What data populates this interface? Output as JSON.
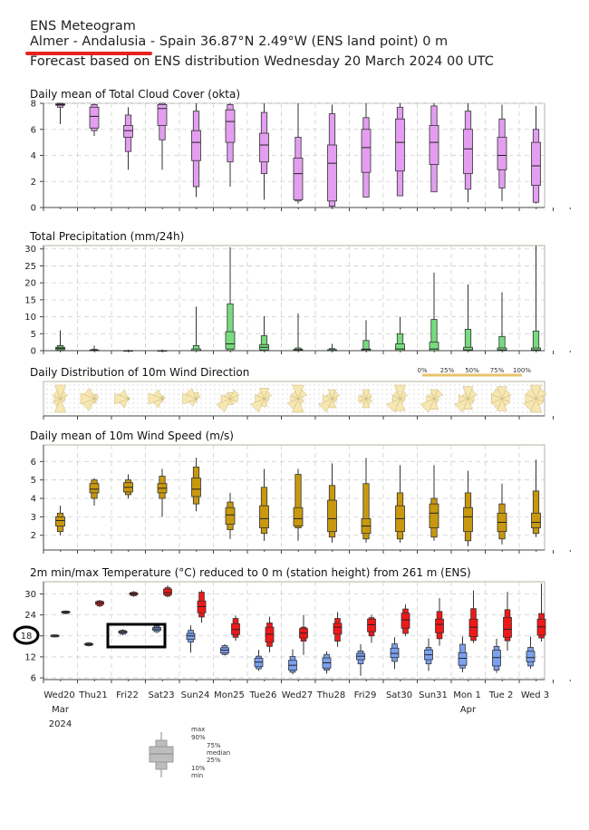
{
  "header": {
    "title": "ENS Meteogram",
    "location": "Almer - Andalusia - Spain 36.87°N 2.49°W (ENS land point) 0 m",
    "forecast": "Forecast based on ENS distribution Wednesday 20 March 2024 00 UTC"
  },
  "colors": {
    "cloud": "#e39ef0",
    "precip": "#77db7f",
    "wind_dir": "#f7e7b0",
    "wind_speed": "#c8980e",
    "temp_warm": "#f01818",
    "temp_cold": "#7ba0f0",
    "weekend": "#e00000",
    "annotation": "#000000",
    "red_underline": "#e8221f"
  },
  "xaxis": {
    "days": [
      "Wed20",
      "Thu21",
      "Fri22",
      "Sat23",
      "Sun24",
      "Mon25",
      "Tue26",
      "Wed27",
      "Thu28",
      "Fri29",
      "Sat30",
      "Sun31",
      "Mon 1",
      "Tue 2",
      "Wed 3"
    ],
    "weekend_days": [
      "Sun24",
      "Sun31"
    ],
    "month_labels": [
      "Mar",
      "Apr"
    ],
    "year_label": "2024"
  },
  "legend": {
    "max": "max",
    "p90": "90%",
    "p75": "75%",
    "median": "median",
    "p25": "25%",
    "p10": "10%",
    "min": "min"
  },
  "annotation": {
    "circled_value": "18"
  },
  "chart_data": [
    {
      "type": "box",
      "id": "cloud",
      "title": "Daily mean of Total Cloud Cover (okta)",
      "ylim": [
        0,
        8
      ],
      "yticks": [
        0,
        2,
        4,
        6,
        8
      ],
      "boxes": [
        {
          "min": 6.4,
          "p10": 7.7,
          "p25": 7.85,
          "med": 7.9,
          "p75": 7.95,
          "p90": 8,
          "max": 8
        },
        {
          "min": 5.5,
          "p10": 5.9,
          "p25": 6.1,
          "med": 7.0,
          "p75": 7.7,
          "p90": 7.9,
          "max": 8
        },
        {
          "min": 2.9,
          "p10": 4.3,
          "p25": 5.4,
          "med": 5.9,
          "p75": 6.3,
          "p90": 7.1,
          "max": 7.7
        },
        {
          "min": 2.9,
          "p10": 5.2,
          "p25": 6.3,
          "med": 7.6,
          "p75": 7.9,
          "p90": 8,
          "max": 8
        },
        {
          "min": 0.8,
          "p10": 1.6,
          "p25": 3.6,
          "med": 5.0,
          "p75": 5.9,
          "p90": 7.4,
          "max": 8
        },
        {
          "min": 1.6,
          "p10": 3.5,
          "p25": 5.0,
          "med": 6.6,
          "p75": 7.5,
          "p90": 7.9,
          "max": 8
        },
        {
          "min": 0.6,
          "p10": 2.6,
          "p25": 3.5,
          "med": 4.8,
          "p75": 5.7,
          "p90": 7.3,
          "max": 8
        },
        {
          "min": 0.3,
          "p10": 0.5,
          "p25": 0.6,
          "med": 2.6,
          "p75": 3.8,
          "p90": 5.4,
          "max": 8
        },
        {
          "min": 0.0,
          "p10": 0.1,
          "p25": 0.5,
          "med": 3.4,
          "p75": 4.8,
          "p90": 7.2,
          "max": 7.9
        },
        {
          "min": 0.8,
          "p10": 0.8,
          "p25": 2.7,
          "med": 4.6,
          "p75": 6.0,
          "p90": 6.9,
          "max": 8
        },
        {
          "min": 0.9,
          "p10": 0.9,
          "p25": 2.8,
          "med": 5.0,
          "p75": 6.8,
          "p90": 7.7,
          "max": 8
        },
        {
          "min": 1.2,
          "p10": 1.2,
          "p25": 3.3,
          "med": 5.0,
          "p75": 6.3,
          "p90": 7.8,
          "max": 8
        },
        {
          "min": 0.4,
          "p10": 1.4,
          "p25": 2.6,
          "med": 4.5,
          "p75": 6.0,
          "p90": 7.4,
          "max": 8
        },
        {
          "min": 0.5,
          "p10": 1.5,
          "p25": 2.9,
          "med": 4.0,
          "p75": 5.4,
          "p90": 6.8,
          "max": 7.9
        },
        {
          "min": 0.3,
          "p10": 0.4,
          "p25": 1.7,
          "med": 3.2,
          "p75": 5.0,
          "p90": 6.0,
          "max": 7.8
        }
      ]
    },
    {
      "type": "box",
      "id": "precip",
      "title": "Total Precipitation (mm/24h)",
      "ylim": [
        0,
        31
      ],
      "yticks": [
        0,
        5,
        10,
        15,
        20,
        25,
        30
      ],
      "boxes": [
        {
          "min": 0,
          "p10": 0,
          "p25": 0.3,
          "med": 0.7,
          "p75": 1.0,
          "p90": 1.5,
          "max": 6.0
        },
        {
          "min": 0,
          "p10": 0,
          "p25": 0,
          "med": 0,
          "p75": 0.2,
          "p90": 0.4,
          "max": 1.5
        },
        {
          "min": 0,
          "p10": 0,
          "p25": 0,
          "med": 0,
          "p75": 0,
          "p90": 0,
          "max": 0.3
        },
        {
          "min": 0,
          "p10": 0,
          "p25": 0,
          "med": 0,
          "p75": 0,
          "p90": 0,
          "max": 0.4
        },
        {
          "min": 0,
          "p10": 0,
          "p25": 0,
          "med": 0,
          "p75": 0.5,
          "p90": 1.5,
          "max": 13
        },
        {
          "min": 0,
          "p10": 0,
          "p25": 0.5,
          "med": 2.0,
          "p75": 5.6,
          "p90": 13.8,
          "max": 30.5
        },
        {
          "min": 0,
          "p10": 0,
          "p25": 0.2,
          "med": 1.0,
          "p75": 1.8,
          "p90": 4.4,
          "max": 10.2
        },
        {
          "min": 0,
          "p10": 0,
          "p25": 0,
          "med": 0.2,
          "p75": 0.4,
          "p90": 0.8,
          "max": 11
        },
        {
          "min": 0,
          "p10": 0,
          "p25": 0,
          "med": 0,
          "p75": 0.3,
          "p90": 0.6,
          "max": 2.0
        },
        {
          "min": 0,
          "p10": 0,
          "p25": 0,
          "med": 0.3,
          "p75": 0.5,
          "p90": 3.0,
          "max": 9.0
        },
        {
          "min": 0,
          "p10": 0,
          "p25": 0,
          "med": 0.5,
          "p75": 2.0,
          "p90": 5.0,
          "max": 10
        },
        {
          "min": 0,
          "p10": 0,
          "p25": 0,
          "med": 0.5,
          "p75": 2.5,
          "p90": 9.2,
          "max": 23
        },
        {
          "min": 0,
          "p10": 0,
          "p25": 0,
          "med": 0.2,
          "p75": 1.0,
          "p90": 6.3,
          "max": 19.5
        },
        {
          "min": 0,
          "p10": 0,
          "p25": 0,
          "med": 0.2,
          "p75": 0.8,
          "p90": 4.2,
          "max": 17.2
        },
        {
          "min": 0,
          "p10": 0,
          "p25": 0,
          "med": 0.2,
          "p75": 0.8,
          "p90": 5.8,
          "max": 31
        }
      ]
    },
    {
      "type": "wind_rose",
      "id": "wind_dir",
      "title": "Daily Distribution of 10m Wind Direction",
      "legend_ticks": [
        "0%",
        "25%",
        "50%",
        "75%",
        "100%"
      ],
      "roses": [
        [
          0.9,
          0.5,
          0.3,
          0.3,
          0.9,
          0.5,
          0.4,
          0.5
        ],
        [
          0.3,
          0.3,
          0.2,
          0.2,
          0.3,
          0.8,
          0.9,
          0.7
        ],
        [
          0.1,
          0.1,
          0.1,
          0.1,
          0.1,
          0.6,
          0.9,
          0.6
        ],
        [
          0.2,
          0.2,
          0.1,
          0.1,
          0.2,
          0.6,
          0.9,
          0.6
        ],
        [
          0.4,
          0.3,
          0.1,
          0.1,
          0.2,
          0.5,
          0.9,
          0.7
        ],
        [
          0.4,
          0.6,
          0.5,
          0.4,
          0.4,
          0.9,
          0.6,
          0.4
        ],
        [
          0.7,
          0.5,
          0.3,
          0.3,
          0.5,
          0.9,
          0.6,
          0.5
        ],
        [
          0.9,
          0.6,
          0.3,
          0.4,
          0.9,
          0.7,
          0.5,
          0.5
        ],
        [
          0.6,
          0.5,
          0.3,
          0.3,
          0.6,
          0.9,
          0.6,
          0.4
        ],
        [
          0.6,
          0.4,
          0.3,
          0.4,
          0.6,
          0.4,
          0.5,
          0.4
        ],
        [
          0.9,
          0.5,
          0.3,
          0.3,
          0.8,
          0.9,
          0.5,
          0.5
        ],
        [
          0.6,
          0.6,
          0.3,
          0.3,
          0.7,
          0.9,
          0.5,
          0.4
        ],
        [
          0.8,
          0.6,
          0.4,
          0.4,
          0.7,
          0.9,
          0.6,
          0.4
        ],
        [
          0.8,
          0.6,
          0.5,
          0.5,
          0.8,
          0.7,
          0.7,
          0.7
        ],
        [
          0.9,
          0.7,
          0.5,
          0.5,
          0.9,
          0.8,
          0.7,
          0.7
        ]
      ]
    },
    {
      "type": "box",
      "id": "wind_speed",
      "title": "Daily mean of 10m Wind Speed (m/s)",
      "ylim": [
        1.2,
        6.9
      ],
      "yticks": [
        2,
        3,
        4,
        5,
        6
      ],
      "boxes": [
        {
          "min": 2.0,
          "p10": 2.2,
          "p25": 2.5,
          "med": 2.8,
          "p75": 3.0,
          "p90": 3.2,
          "max": 3.6
        },
        {
          "min": 3.6,
          "p10": 4.0,
          "p25": 4.3,
          "med": 4.5,
          "p75": 4.8,
          "p90": 5.0,
          "max": 5.1
        },
        {
          "min": 4.0,
          "p10": 4.2,
          "p25": 4.35,
          "med": 4.6,
          "p75": 4.85,
          "p90": 5.0,
          "max": 5.3
        },
        {
          "min": 3.0,
          "p10": 4.0,
          "p25": 4.3,
          "med": 4.55,
          "p75": 4.8,
          "p90": 5.2,
          "max": 5.6
        },
        {
          "min": 3.3,
          "p10": 3.7,
          "p25": 4.1,
          "med": 4.5,
          "p75": 5.1,
          "p90": 5.7,
          "max": 6.2
        },
        {
          "min": 1.8,
          "p10": 2.3,
          "p25": 2.6,
          "med": 3.1,
          "p75": 3.5,
          "p90": 3.8,
          "max": 4.3
        },
        {
          "min": 1.7,
          "p10": 2.1,
          "p25": 2.4,
          "med": 2.9,
          "p75": 3.6,
          "p90": 4.6,
          "max": 5.6
        },
        {
          "min": 1.7,
          "p10": 2.4,
          "p25": 2.5,
          "med": 2.9,
          "p75": 3.5,
          "p90": 5.3,
          "max": 5.6
        },
        {
          "min": 1.6,
          "p10": 1.9,
          "p25": 2.2,
          "med": 2.9,
          "p75": 3.9,
          "p90": 4.7,
          "max": 5.9
        },
        {
          "min": 1.6,
          "p10": 1.8,
          "p25": 2.1,
          "med": 2.5,
          "p75": 2.9,
          "p90": 4.8,
          "max": 6.2
        },
        {
          "min": 1.6,
          "p10": 1.8,
          "p25": 2.2,
          "med": 2.9,
          "p75": 3.6,
          "p90": 4.3,
          "max": 5.8
        },
        {
          "min": 1.7,
          "p10": 1.9,
          "p25": 2.4,
          "med": 3.2,
          "p75": 3.7,
          "p90": 4.0,
          "max": 5.8
        },
        {
          "min": 1.4,
          "p10": 1.7,
          "p25": 2.2,
          "med": 3.0,
          "p75": 3.5,
          "p90": 4.3,
          "max": 5.5
        },
        {
          "min": 1.5,
          "p10": 1.8,
          "p25": 2.2,
          "med": 2.7,
          "p75": 3.2,
          "p90": 3.7,
          "max": 4.8
        },
        {
          "min": 1.9,
          "p10": 2.1,
          "p25": 2.4,
          "med": 2.7,
          "p75": 3.2,
          "p90": 4.4,
          "max": 6.1
        }
      ]
    },
    {
      "type": "box",
      "id": "temperature",
      "title": "2m min/max Temperature (°C) reduced to 0 m (station height) from 261 m (ENS)",
      "ylim": [
        5.5,
        33.5
      ],
      "yticks": [
        6,
        12,
        18,
        24,
        30
      ],
      "min_boxes": [
        {
          "min": 17.6,
          "p10": 17.7,
          "p25": 17.8,
          "med": 18.0,
          "p75": 18.2,
          "p90": 18.3,
          "max": 18.4
        },
        {
          "min": 15.0,
          "p10": 15.2,
          "p25": 15.4,
          "med": 15.6,
          "p75": 15.8,
          "p90": 16.0,
          "max": 16.2
        },
        {
          "min": 18.2,
          "p10": 18.5,
          "p25": 18.8,
          "med": 19.1,
          "p75": 19.4,
          "p90": 19.6,
          "max": 19.9
        },
        {
          "min": 18.8,
          "p10": 19.2,
          "p25": 19.6,
          "med": 20.0,
          "p75": 20.4,
          "p90": 20.8,
          "max": 21.2
        },
        {
          "min": 13.2,
          "p10": 16.2,
          "p25": 17.0,
          "med": 18.0,
          "p75": 18.7,
          "p90": 19.6,
          "max": 21.0
        },
        {
          "min": 12.4,
          "p10": 12.7,
          "p25": 13.1,
          "med": 13.9,
          "p75": 14.6,
          "p90": 15.2,
          "max": 15.6
        },
        {
          "min": 8.0,
          "p10": 8.6,
          "p25": 9.2,
          "med": 10.5,
          "p75": 11.6,
          "p90": 12.2,
          "max": 14.0
        },
        {
          "min": 7.0,
          "p10": 7.6,
          "p25": 8.2,
          "med": 9.6,
          "p75": 11.0,
          "p90": 12.1,
          "max": 14.2
        },
        {
          "min": 7.2,
          "p10": 8.2,
          "p25": 8.8,
          "med": 10.3,
          "p75": 11.7,
          "p90": 12.7,
          "max": 13.6
        },
        {
          "min": 6.6,
          "p10": 10.0,
          "p25": 11.2,
          "med": 12.2,
          "p75": 13.0,
          "p90": 13.7,
          "max": 15.6
        },
        {
          "min": 8.5,
          "p10": 10.7,
          "p25": 11.8,
          "med": 13.0,
          "p75": 14.5,
          "p90": 15.7,
          "max": 17.6
        },
        {
          "min": 8.0,
          "p10": 10.0,
          "p25": 11.2,
          "med": 12.6,
          "p75": 14.0,
          "p90": 14.7,
          "max": 17.3
        },
        {
          "min": 7.6,
          "p10": 8.8,
          "p25": 9.6,
          "med": 11.6,
          "p75": 13.2,
          "p90": 15.6,
          "max": 17.8
        },
        {
          "min": 7.4,
          "p10": 8.2,
          "p25": 9.4,
          "med": 11.8,
          "p75": 13.9,
          "p90": 15.0,
          "max": 17.2
        },
        {
          "min": 8.6,
          "p10": 9.4,
          "p25": 10.6,
          "med": 11.8,
          "p75": 13.6,
          "p90": 14.7,
          "max": 17.8
        }
      ],
      "max_boxes": [
        {
          "min": 24.2,
          "p10": 24.4,
          "p25": 24.6,
          "med": 24.8,
          "p75": 25.0,
          "p90": 25.1,
          "max": 25.3
        },
        {
          "min": 26.2,
          "p10": 26.6,
          "p25": 27.0,
          "med": 27.4,
          "p75": 27.8,
          "p90": 28.0,
          "max": 28.3
        },
        {
          "min": 29.2,
          "p10": 29.5,
          "p25": 29.8,
          "med": 30.0,
          "p75": 30.3,
          "p90": 30.5,
          "max": 30.8
        },
        {
          "min": 29.0,
          "p10": 29.4,
          "p25": 29.8,
          "med": 30.4,
          "p75": 31.4,
          "p90": 31.8,
          "max": 32.5
        },
        {
          "min": 21.8,
          "p10": 23.4,
          "p25": 24.6,
          "med": 26.4,
          "p75": 28.0,
          "p90": 30.5,
          "max": 31.1
        },
        {
          "min": 16.6,
          "p10": 17.6,
          "p25": 18.4,
          "med": 19.8,
          "p75": 21.5,
          "p90": 23.0,
          "max": 23.8
        },
        {
          "min": 13.3,
          "p10": 15.0,
          "p25": 16.2,
          "med": 18.5,
          "p75": 20.5,
          "p90": 21.7,
          "max": 23.5
        },
        {
          "min": 12.6,
          "p10": 16.5,
          "p25": 17.4,
          "med": 18.8,
          "p75": 20.1,
          "p90": 20.5,
          "max": 24.0
        },
        {
          "min": 14.9,
          "p10": 16.5,
          "p25": 18.5,
          "med": 20.5,
          "p75": 21.6,
          "p90": 23.0,
          "max": 24.8
        },
        {
          "min": 16.0,
          "p10": 18.0,
          "p25": 19.2,
          "med": 21.2,
          "p75": 22.8,
          "p90": 23.2,
          "max": 24.0
        },
        {
          "min": 18.0,
          "p10": 18.7,
          "p25": 20.2,
          "med": 22.6,
          "p75": 24.5,
          "p90": 25.7,
          "max": 27.0
        },
        {
          "min": 15.2,
          "p10": 17.2,
          "p25": 18.9,
          "med": 21.3,
          "p75": 22.8,
          "p90": 25.0,
          "max": 28.8
        },
        {
          "min": 16.0,
          "p10": 16.7,
          "p25": 17.8,
          "med": 20.5,
          "p75": 22.8,
          "p90": 25.8,
          "max": 31.0
        },
        {
          "min": 13.8,
          "p10": 16.6,
          "p25": 17.6,
          "med": 19.9,
          "p75": 23.3,
          "p90": 25.5,
          "max": 30.6
        },
        {
          "min": 16.4,
          "p10": 17.4,
          "p25": 18.2,
          "med": 20.6,
          "p75": 22.8,
          "p90": 24.4,
          "max": 33.0
        }
      ]
    }
  ]
}
